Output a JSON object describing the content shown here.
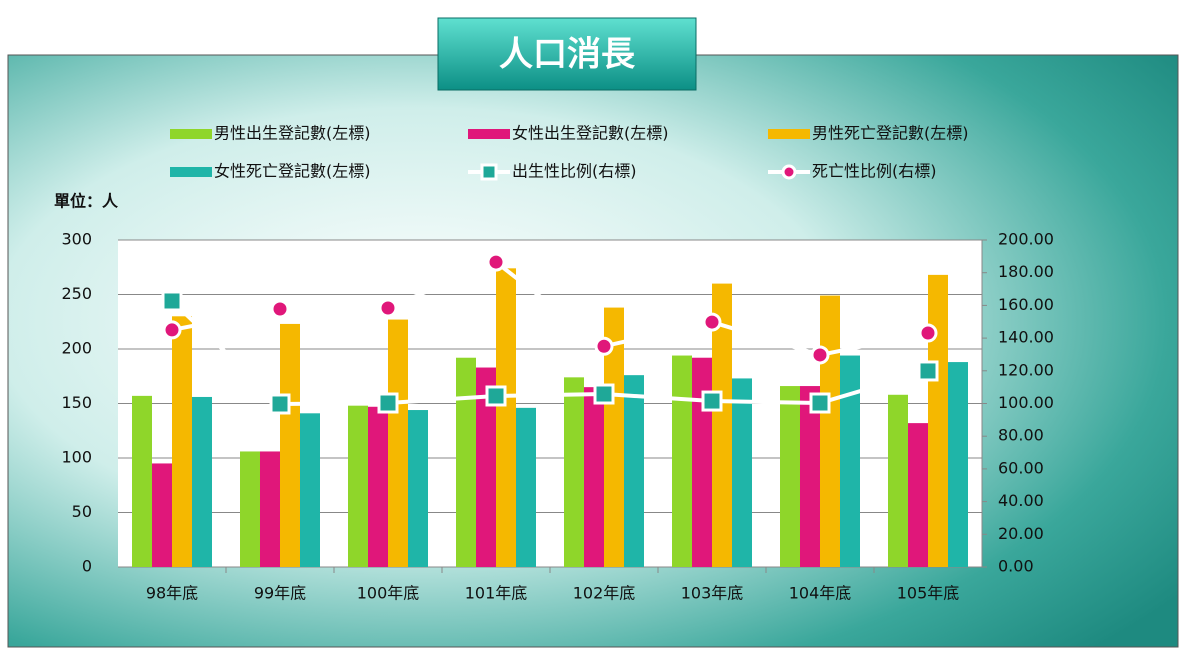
{
  "chart_data": {
    "type": "bar-line",
    "title": "人口消長",
    "y_label": "單位：人",
    "categories": [
      "98年底",
      "99年底",
      "100年底",
      "101年底",
      "102年底",
      "103年底",
      "104年底",
      "105年底"
    ],
    "ylim": [
      0,
      300
    ],
    "yticks": [
      0,
      50,
      100,
      150,
      200,
      250,
      300
    ],
    "y2lim": [
      0,
      200
    ],
    "y2ticks": [
      {
        "value": 0,
        "label": "0.00"
      },
      {
        "value": 20,
        "label": "20.00"
      },
      {
        "value": 40,
        "label": "40.00"
      },
      {
        "value": 60,
        "label": "60.00"
      },
      {
        "value": 80,
        "label": "80.00"
      },
      {
        "value": 100,
        "label": "100.00"
      },
      {
        "value": 120,
        "label": "120.00"
      },
      {
        "value": 140,
        "label": "140.00"
      },
      {
        "value": 160,
        "label": "160.00"
      },
      {
        "value": 180,
        "label": "180.00"
      },
      {
        "value": 200,
        "label": "200.00"
      }
    ],
    "grid": true,
    "series": [
      {
        "name": "男性出生登記數(左標)",
        "type": "bar",
        "color": "#8fd62a",
        "values": [
          157,
          106,
          148,
          192,
          174,
          194,
          166,
          158
        ]
      },
      {
        "name": "女性出生登記數(左標)",
        "type": "bar",
        "color": "#e0177a",
        "values": [
          95,
          106,
          147,
          183,
          165,
          192,
          166,
          132
        ]
      },
      {
        "name": "男性死亡登記數(左標)",
        "type": "bar",
        "color": "#f5b800",
        "values": [
          230,
          223,
          227,
          274,
          238,
          260,
          249,
          268
        ]
      },
      {
        "name": "女性死亡登記數(左標)",
        "type": "bar",
        "color": "#1fb5a8",
        "values": [
          156,
          141,
          144,
          146,
          176,
          173,
          194,
          188
        ]
      },
      {
        "name": "出生性比例(右標)",
        "type": "line",
        "axis": "y2",
        "marker": "square",
        "color": "#1fa898",
        "values": [
          162.7,
          99.7,
          100.3,
          104.6,
          105.8,
          101.5,
          100.3,
          119.9
        ]
      },
      {
        "name": "死亡性比例(右標)",
        "type": "line",
        "axis": "y2",
        "marker": "circle",
        "color": "#e0177a",
        "values": [
          145,
          157.8,
          158.4,
          186.5,
          135,
          149.8,
          129.7,
          143.1
        ]
      }
    ]
  }
}
